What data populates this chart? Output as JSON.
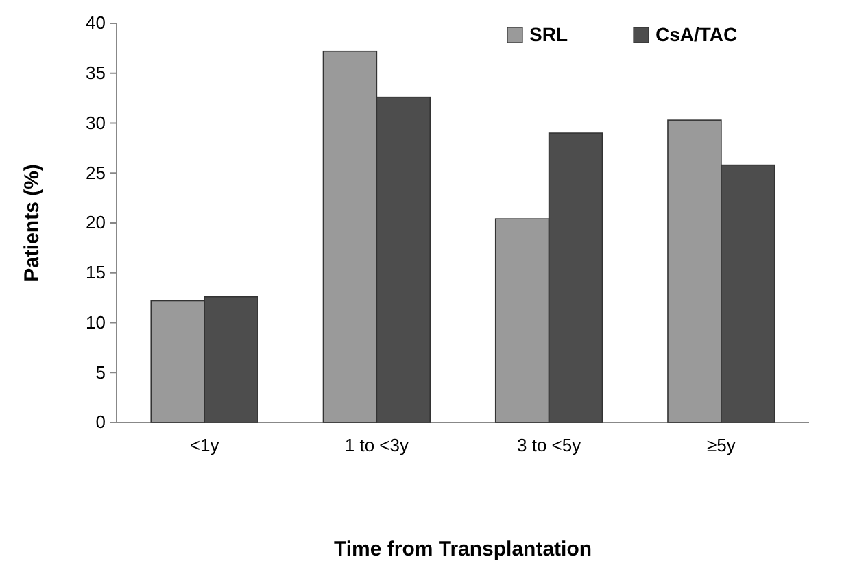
{
  "chart_data": {
    "type": "bar",
    "xlabel": "Time from Transplantation",
    "ylabel": "Patients (%)",
    "categories": [
      "<1y",
      "1 to <3y",
      "3 to <5y",
      "≥5y"
    ],
    "series": [
      {
        "name": "SRL",
        "color": "#9a9a9a",
        "values": [
          12.2,
          37.2,
          20.4,
          30.3
        ]
      },
      {
        "name": "CsA/TAC",
        "color": "#4d4d4d",
        "values": [
          12.6,
          32.6,
          29.0,
          25.8
        ]
      }
    ],
    "ylim": [
      0,
      40
    ],
    "yticks": [
      0,
      5,
      10,
      15,
      20,
      25,
      30,
      35,
      40
    ],
    "grid": false,
    "legend": "top right"
  }
}
